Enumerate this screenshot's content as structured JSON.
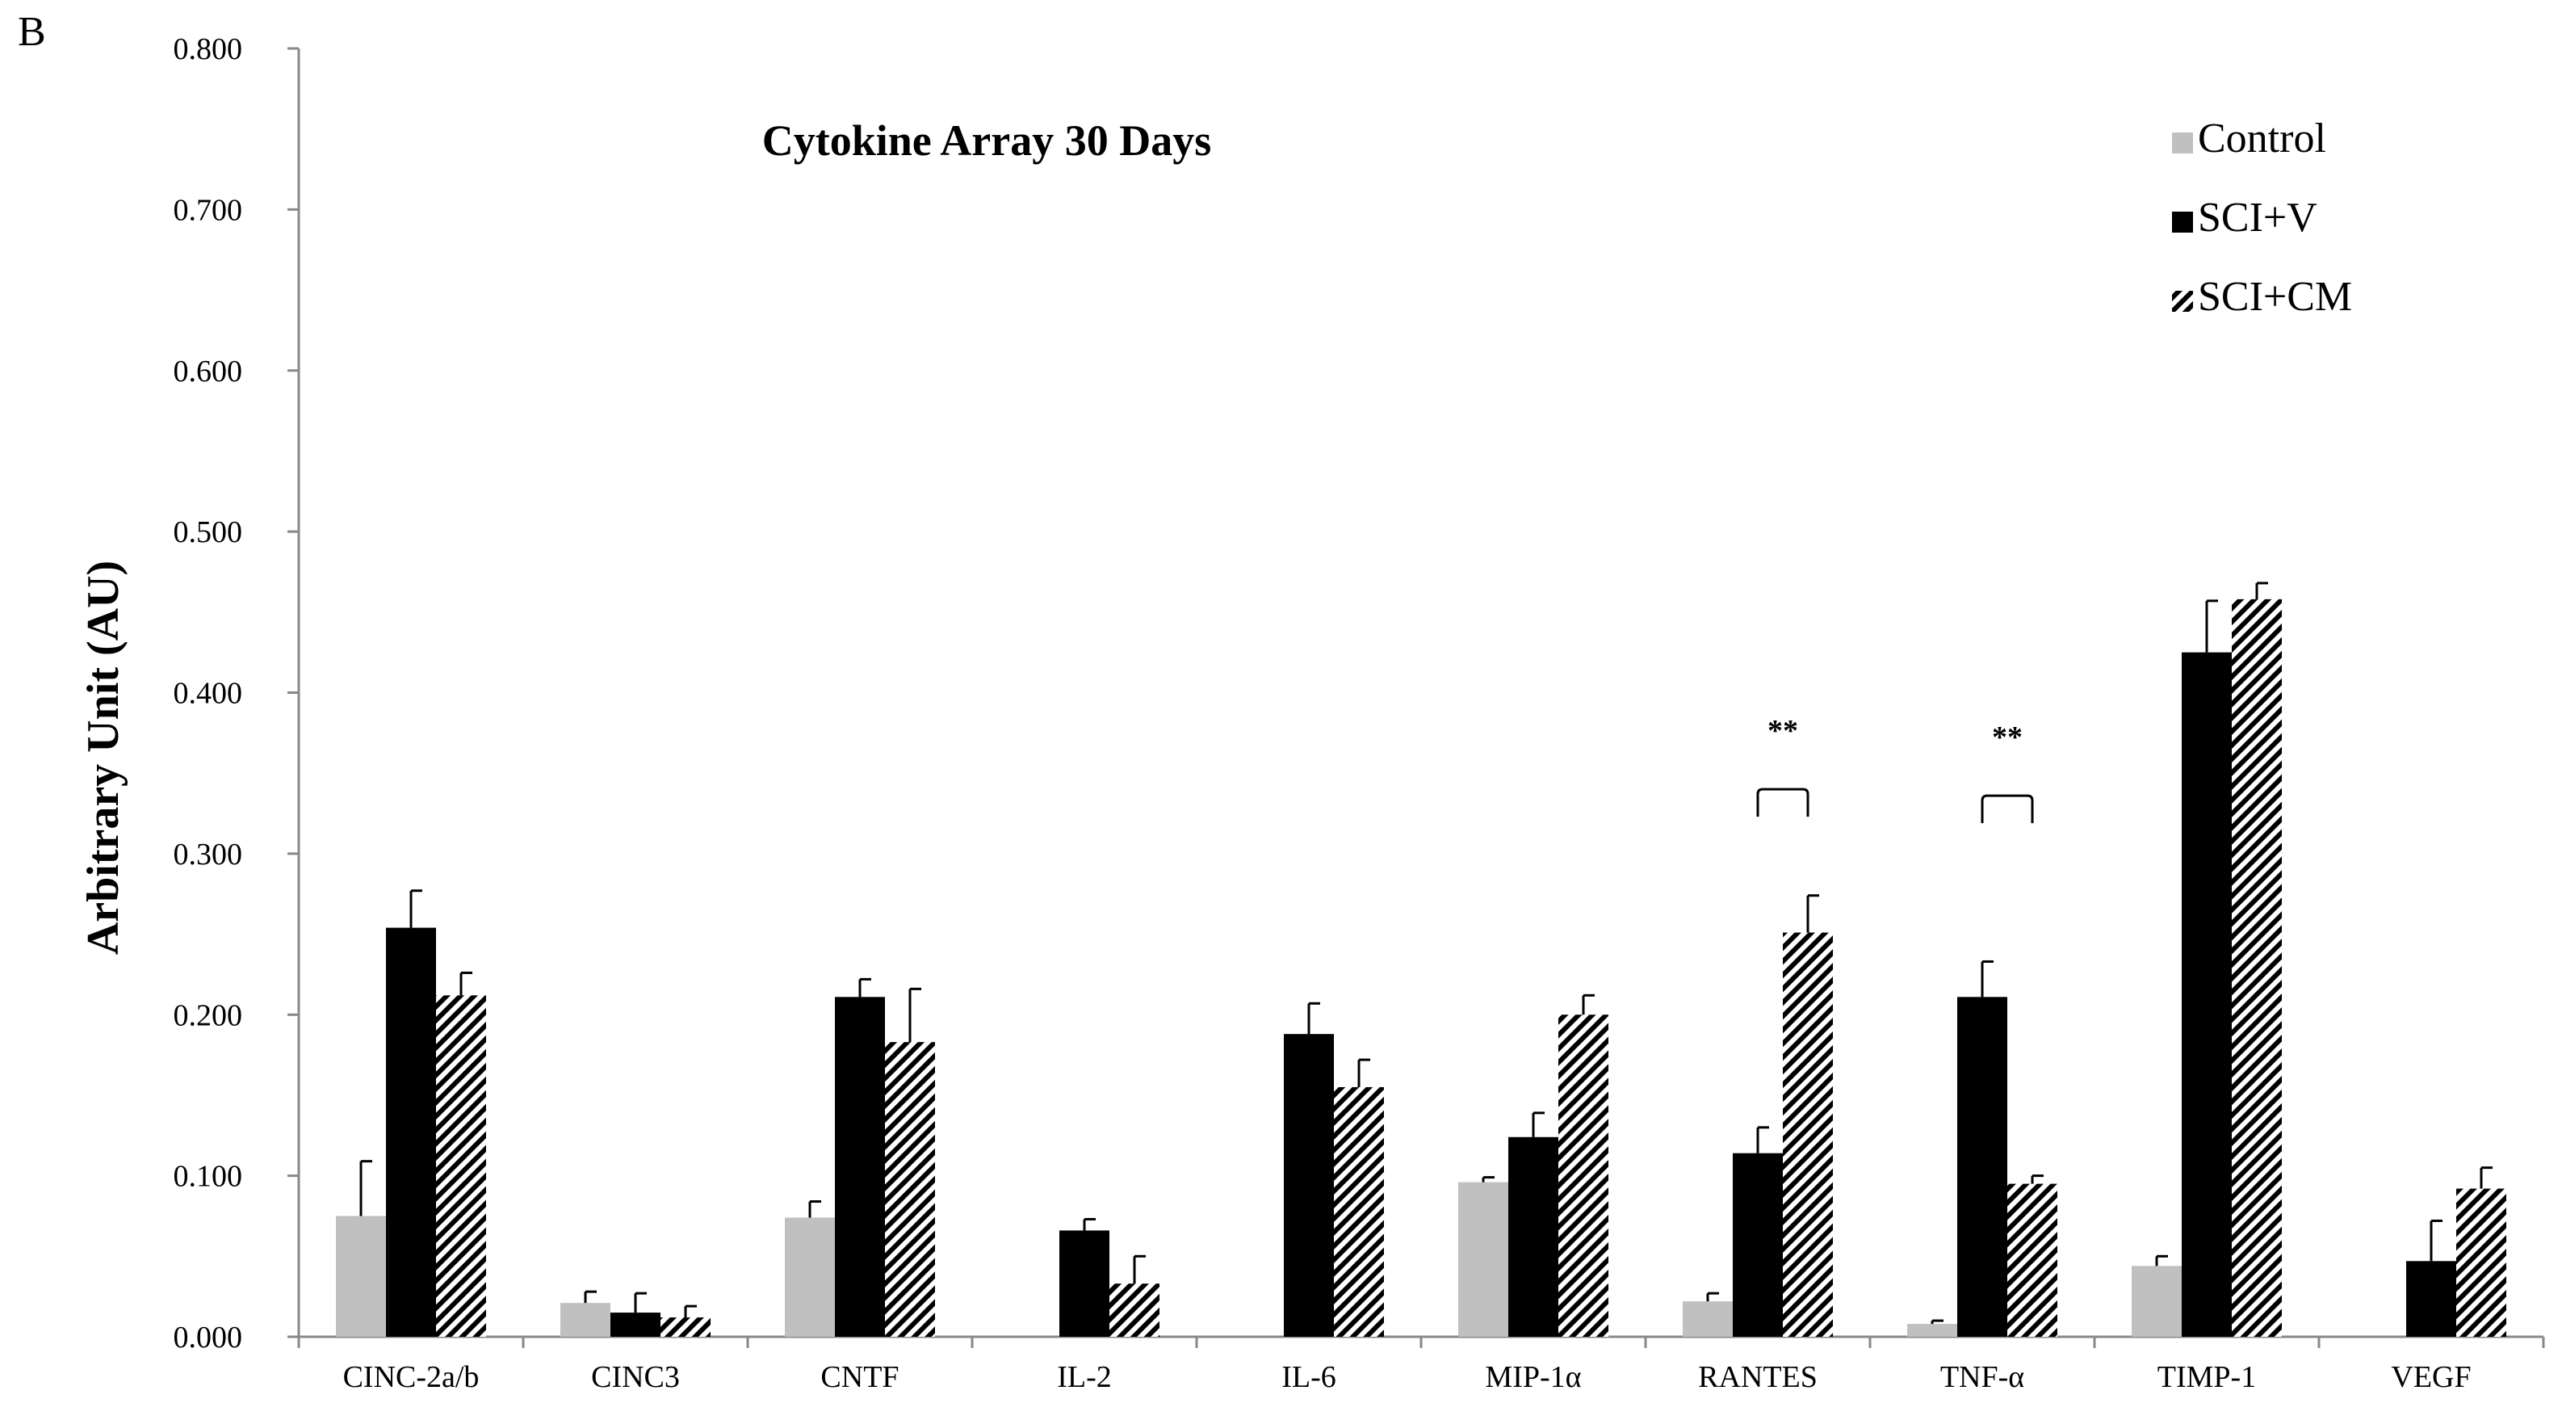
{
  "panel_label": "B",
  "chart_data": {
    "type": "bar",
    "title": "Cytokine  Array 30 Days",
    "xlabel": "",
    "ylabel": "Arbitrary Unit (AU)",
    "ylim": [
      0,
      0.8
    ],
    "yticks": [
      "0.000",
      "0.100",
      "0.200",
      "0.300",
      "0.400",
      "0.500",
      "0.600",
      "0.700",
      "0.800"
    ],
    "legend_position": "top-right",
    "grid": false,
    "categories": [
      "CINC-2a/b",
      "CINC3",
      "CNTF",
      "IL-2",
      "IL-6",
      "MIP-1α",
      "RANTES",
      "TNF-α",
      "TIMP-1",
      "VEGF"
    ],
    "series": [
      {
        "name": "Control",
        "style": "solid",
        "color": "#c0c0c0",
        "values": [
          0.075,
          0.021,
          0.074,
          0,
          0,
          0.096,
          0.022,
          0.008,
          0.044,
          0
        ],
        "errors": [
          0.034,
          0.007,
          0.01,
          0,
          0,
          0.003,
          0.005,
          0.002,
          0.006,
          0
        ]
      },
      {
        "name": "SCI+V",
        "style": "solid",
        "color": "#000000",
        "values": [
          0.254,
          0.015,
          0.211,
          0.066,
          0.188,
          0.124,
          0.114,
          0.211,
          0.425,
          0.047
        ],
        "errors": [
          0.023,
          0.012,
          0.011,
          0.007,
          0.019,
          0.015,
          0.016,
          0.022,
          0.032,
          0.025
        ]
      },
      {
        "name": "SCI+CM",
        "style": "hatched",
        "color": "#000000",
        "values": [
          0.212,
          0.012,
          0.183,
          0.033,
          0.155,
          0.2,
          0.251,
          0.095,
          0.458,
          0.092
        ],
        "errors": [
          0.014,
          0.007,
          0.033,
          0.017,
          0.017,
          0.012,
          0.023,
          0.005,
          0.01,
          0.013
        ]
      }
    ],
    "annotations": [
      {
        "category": "RANTES",
        "text": "**",
        "between": [
          "SCI+V",
          "SCI+CM"
        ],
        "level": 0.34
      },
      {
        "category": "TNF-α",
        "text": "**",
        "between": [
          "SCI+V",
          "SCI+CM"
        ],
        "level": 0.336
      }
    ]
  }
}
